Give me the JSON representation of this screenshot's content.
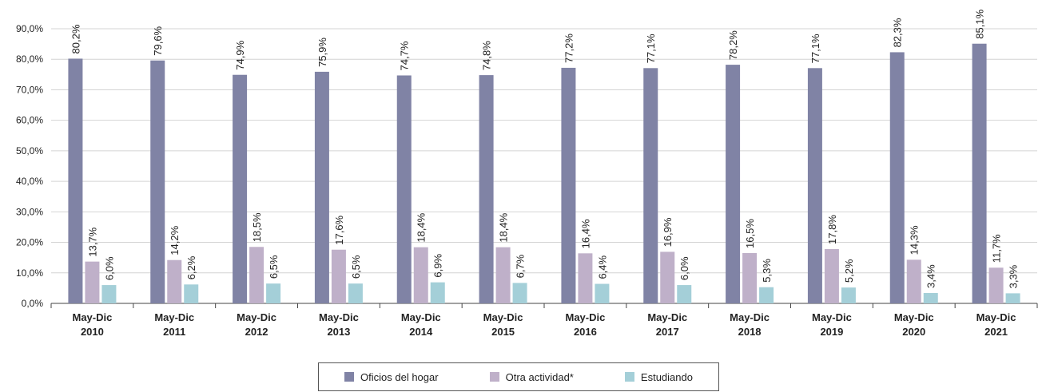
{
  "chart_data": {
    "type": "bar",
    "categories": [
      [
        "May-Dic",
        "2010"
      ],
      [
        "May-Dic",
        "2011"
      ],
      [
        "May-Dic",
        "2012"
      ],
      [
        "May-Dic",
        "2013"
      ],
      [
        "May-Dic",
        "2014"
      ],
      [
        "May-Dic",
        "2015"
      ],
      [
        "May-Dic",
        "2016"
      ],
      [
        "May-Dic",
        "2017"
      ],
      [
        "May-Dic",
        "2018"
      ],
      [
        "May-Dic",
        "2019"
      ],
      [
        "May-Dic",
        "2020"
      ],
      [
        "May-Dic",
        "2021"
      ]
    ],
    "series": [
      {
        "name": "Oficios del hogar",
        "color": "#8083a5",
        "values": [
          80.2,
          79.6,
          74.9,
          75.9,
          74.7,
          74.8,
          77.2,
          77.1,
          78.2,
          77.1,
          82.3,
          85.1
        ],
        "labels": [
          "80,2%",
          "79,6%",
          "74,9%",
          "75,9%",
          "74,7%",
          "74,8%",
          "77,2%",
          "77,1%",
          "78,2%",
          "77,1%",
          "82,3%",
          "85,1%"
        ]
      },
      {
        "name": "Otra actividad*",
        "color": "#bfb0c9",
        "values": [
          13.7,
          14.2,
          18.5,
          17.6,
          18.4,
          18.4,
          16.4,
          16.9,
          16.5,
          17.8,
          14.3,
          11.7
        ],
        "labels": [
          "13,7%",
          "14,2%",
          "18,5%",
          "17,6%",
          "18,4%",
          "18,4%",
          "16,4%",
          "16,9%",
          "16,5%",
          "17,8%",
          "14,3%",
          "11,7%"
        ]
      },
      {
        "name": "Estudiando",
        "color": "#a4cfd8",
        "values": [
          6.0,
          6.2,
          6.5,
          6.5,
          6.9,
          6.7,
          6.4,
          6.0,
          5.3,
          5.2,
          3.4,
          3.3
        ],
        "labels": [
          "6,0%",
          "6,2%",
          "6,5%",
          "6,5%",
          "6,9%",
          "6,7%",
          "6,4%",
          "6,0%",
          "5,3%",
          "5,2%",
          "3,4%",
          "3,3%"
        ]
      }
    ],
    "yticks": [
      "0,0%",
      "10,0%",
      "20,0%",
      "30,0%",
      "40,0%",
      "50,0%",
      "60,0%",
      "70,0%",
      "80,0%",
      "90,0%"
    ],
    "ylim": [
      0,
      90
    ],
    "grid": true,
    "legend": "bottom-center"
  }
}
